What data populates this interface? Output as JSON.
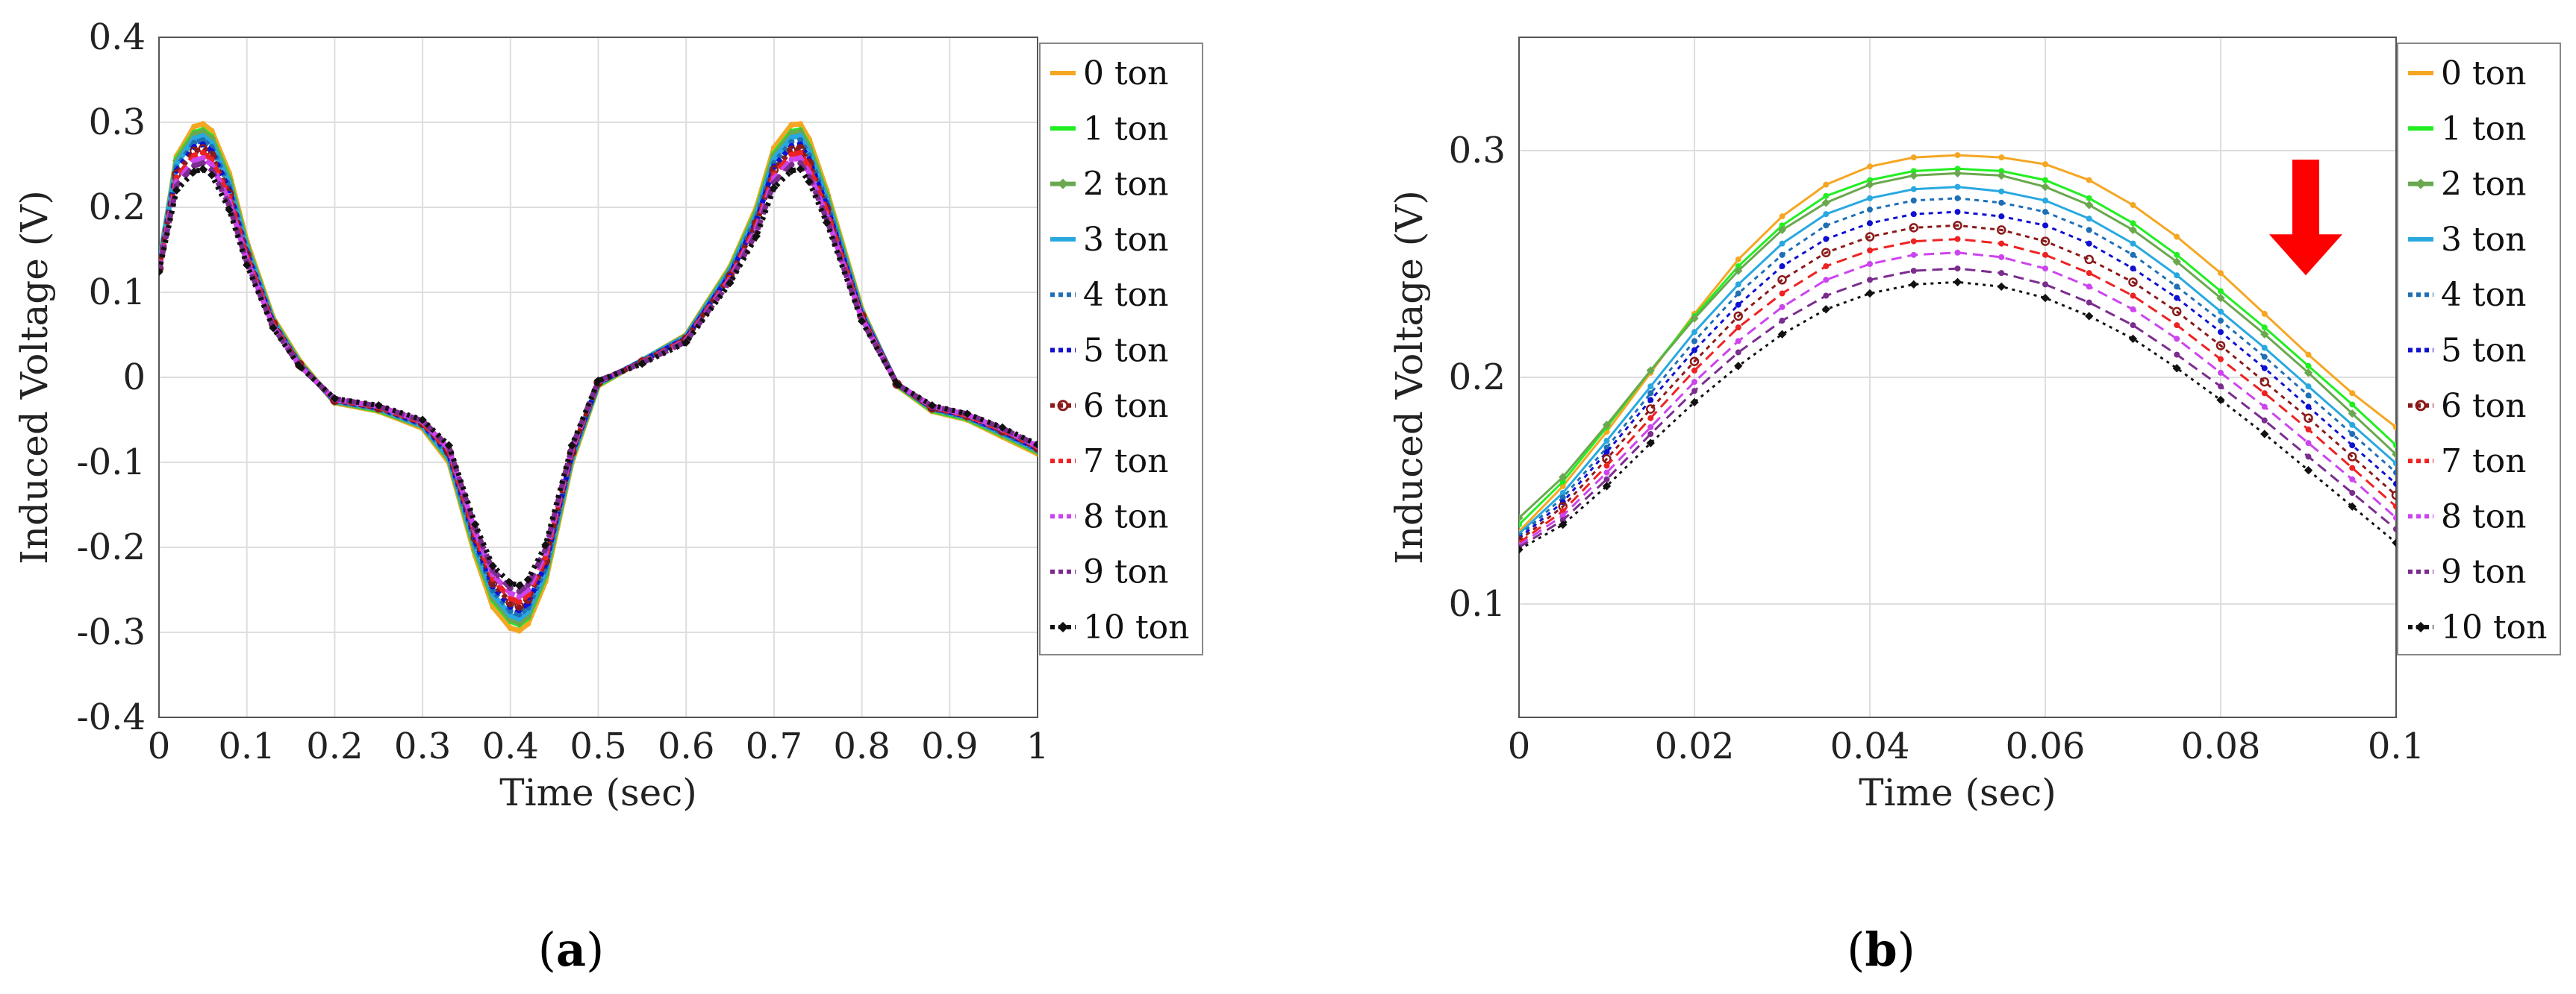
{
  "chart_data": [
    {
      "id": "a",
      "type": "line",
      "caption": "a",
      "xlabel": "Time (sec)",
      "ylabel": "Induced Voltage (V)",
      "xlim": [
        0,
        1
      ],
      "ylim": [
        -0.4,
        0.4
      ],
      "xticks": [
        "0",
        "0.1",
        "0.2",
        "0.3",
        "0.4",
        "0.5",
        "0.6",
        "0.7",
        "0.8",
        "0.9",
        "1"
      ],
      "yticks": [
        "-0.4",
        "-0.3",
        "-0.2",
        "-0.1",
        "0",
        "0.1",
        "0.2",
        "0.3",
        "0.4"
      ],
      "grid": true,
      "legend_position": "outside-right",
      "x": [
        0,
        0.02,
        0.04,
        0.05,
        0.06,
        0.08,
        0.1,
        0.13,
        0.16,
        0.2,
        0.25,
        0.3,
        0.33,
        0.36,
        0.38,
        0.4,
        0.41,
        0.42,
        0.44,
        0.47,
        0.5,
        0.55,
        0.6,
        0.65,
        0.68,
        0.7,
        0.72,
        0.73,
        0.74,
        0.76,
        0.8,
        0.84,
        0.88,
        0.92,
        0.96,
        1.0
      ],
      "series": [
        {
          "name": "0 ton",
          "values": [
            0.13,
            0.26,
            0.295,
            0.298,
            0.29,
            0.24,
            0.16,
            0.07,
            0.02,
            -0.03,
            -0.04,
            -0.06,
            -0.1,
            -0.21,
            -0.27,
            -0.295,
            -0.298,
            -0.29,
            -0.24,
            -0.1,
            -0.01,
            0.02,
            0.05,
            0.13,
            0.2,
            0.27,
            0.297,
            0.298,
            0.28,
            0.22,
            0.08,
            -0.01,
            -0.04,
            -0.05,
            -0.07,
            -0.09
          ]
        },
        {
          "name": "1 ton",
          "values": [
            0.132,
            0.257,
            0.288,
            0.291,
            0.283,
            0.234,
            0.156,
            0.068,
            0.018,
            -0.029,
            -0.039,
            -0.058,
            -0.097,
            -0.205,
            -0.262,
            -0.287,
            -0.291,
            -0.283,
            -0.234,
            -0.097,
            -0.009,
            0.02,
            0.049,
            0.128,
            0.196,
            0.263,
            0.289,
            0.291,
            0.272,
            0.215,
            0.078,
            -0.009,
            -0.039,
            -0.049,
            -0.068,
            -0.088
          ]
        },
        {
          "name": "2 ton",
          "values": [
            0.134,
            0.255,
            0.286,
            0.289,
            0.281,
            0.232,
            0.155,
            0.067,
            0.017,
            -0.029,
            -0.038,
            -0.058,
            -0.096,
            -0.203,
            -0.26,
            -0.285,
            -0.289,
            -0.281,
            -0.232,
            -0.096,
            -0.008,
            0.02,
            0.049,
            0.127,
            0.194,
            0.261,
            0.287,
            0.289,
            0.27,
            0.213,
            0.077,
            -0.008,
            -0.038,
            -0.048,
            -0.067,
            -0.087
          ]
        },
        {
          "name": "3 ton",
          "values": [
            0.131,
            0.251,
            0.281,
            0.284,
            0.276,
            0.228,
            0.152,
            0.066,
            0.016,
            -0.028,
            -0.037,
            -0.057,
            -0.094,
            -0.199,
            -0.255,
            -0.28,
            -0.284,
            -0.276,
            -0.228,
            -0.094,
            -0.007,
            0.02,
            0.048,
            0.125,
            0.191,
            0.257,
            0.282,
            0.284,
            0.265,
            0.209,
            0.076,
            -0.008,
            -0.037,
            -0.047,
            -0.066,
            -0.086
          ]
        },
        {
          "name": "4 ton",
          "values": [
            0.13,
            0.247,
            0.276,
            0.279,
            0.271,
            0.224,
            0.149,
            0.065,
            0.016,
            -0.028,
            -0.037,
            -0.056,
            -0.092,
            -0.196,
            -0.251,
            -0.275,
            -0.279,
            -0.271,
            -0.224,
            -0.092,
            -0.007,
            0.019,
            0.047,
            0.123,
            0.188,
            0.252,
            0.277,
            0.279,
            0.261,
            0.206,
            0.074,
            -0.008,
            -0.037,
            -0.047,
            -0.065,
            -0.085
          ]
        },
        {
          "name": "5 ton",
          "values": [
            0.129,
            0.243,
            0.271,
            0.274,
            0.266,
            0.22,
            0.146,
            0.064,
            0.015,
            -0.027,
            -0.036,
            -0.055,
            -0.09,
            -0.192,
            -0.246,
            -0.27,
            -0.274,
            -0.266,
            -0.22,
            -0.09,
            -0.006,
            0.019,
            0.046,
            0.121,
            0.184,
            0.248,
            0.272,
            0.274,
            0.256,
            0.202,
            0.073,
            -0.008,
            -0.036,
            -0.046,
            -0.064,
            -0.084
          ]
        },
        {
          "name": "6 ton",
          "values": [
            0.128,
            0.239,
            0.266,
            0.269,
            0.261,
            0.216,
            0.144,
            0.063,
            0.015,
            -0.027,
            -0.036,
            -0.054,
            -0.088,
            -0.189,
            -0.242,
            -0.265,
            -0.269,
            -0.261,
            -0.216,
            -0.088,
            -0.006,
            0.018,
            0.045,
            0.119,
            0.181,
            0.244,
            0.267,
            0.269,
            0.252,
            0.198,
            0.072,
            -0.008,
            -0.036,
            -0.045,
            -0.063,
            -0.083
          ]
        },
        {
          "name": "7 ton",
          "values": [
            0.127,
            0.235,
            0.261,
            0.264,
            0.256,
            0.212,
            0.141,
            0.062,
            0.014,
            -0.026,
            -0.035,
            -0.053,
            -0.086,
            -0.185,
            -0.237,
            -0.26,
            -0.264,
            -0.256,
            -0.212,
            -0.086,
            -0.005,
            0.018,
            0.044,
            0.117,
            0.178,
            0.239,
            0.262,
            0.264,
            0.247,
            0.195,
            0.07,
            -0.008,
            -0.035,
            -0.045,
            -0.062,
            -0.082
          ]
        },
        {
          "name": "8 ton",
          "values": [
            0.126,
            0.23,
            0.255,
            0.258,
            0.25,
            0.207,
            0.138,
            0.06,
            0.014,
            -0.026,
            -0.034,
            -0.052,
            -0.084,
            -0.181,
            -0.232,
            -0.254,
            -0.258,
            -0.25,
            -0.207,
            -0.084,
            -0.005,
            0.017,
            0.043,
            0.115,
            0.174,
            0.234,
            0.256,
            0.258,
            0.241,
            0.19,
            0.069,
            -0.008,
            -0.034,
            -0.044,
            -0.061,
            -0.081
          ]
        },
        {
          "name": "9 ton",
          "values": [
            0.125,
            0.225,
            0.249,
            0.252,
            0.244,
            0.202,
            0.135,
            0.059,
            0.013,
            -0.025,
            -0.034,
            -0.051,
            -0.082,
            -0.177,
            -0.227,
            -0.248,
            -0.252,
            -0.244,
            -0.202,
            -0.082,
            -0.004,
            0.017,
            0.042,
            0.113,
            0.17,
            0.229,
            0.25,
            0.252,
            0.236,
            0.186,
            0.067,
            -0.008,
            -0.034,
            -0.043,
            -0.06,
            -0.08
          ]
        },
        {
          "name": "10 ton",
          "values": [
            0.124,
            0.22,
            0.242,
            0.245,
            0.238,
            0.197,
            0.132,
            0.058,
            0.013,
            -0.025,
            -0.033,
            -0.05,
            -0.08,
            -0.173,
            -0.222,
            -0.242,
            -0.245,
            -0.238,
            -0.197,
            -0.08,
            -0.004,
            0.016,
            0.041,
            0.111,
            0.166,
            0.223,
            0.243,
            0.245,
            0.23,
            0.182,
            0.066,
            -0.008,
            -0.033,
            -0.043,
            -0.059,
            -0.079
          ]
        }
      ]
    },
    {
      "id": "b",
      "type": "line",
      "caption": "b",
      "xlabel": "Time (sec)",
      "ylabel": "Induced Voltage (V)",
      "xlim": [
        0,
        0.1
      ],
      "ylim": [
        0.05,
        0.35
      ],
      "xticks": [
        "0",
        "0.02",
        "0.04",
        "0.06",
        "0.08",
        "0.1"
      ],
      "yticks": [
        "0.1",
        "0.2",
        "0.3"
      ],
      "ytick_values": [
        0.1,
        0.2,
        0.3
      ],
      "grid": true,
      "legend_position": "outside-right",
      "annotation": "red downward arrow indicating voltage decreasing with load",
      "x": [
        0,
        0.005,
        0.01,
        0.015,
        0.02,
        0.025,
        0.03,
        0.035,
        0.04,
        0.045,
        0.05,
        0.055,
        0.06,
        0.065,
        0.07,
        0.075,
        0.08,
        0.085,
        0.09,
        0.095,
        0.1
      ],
      "series": [
        {
          "name": "0 ton",
          "values": [
            0.132,
            0.152,
            0.176,
            0.202,
            0.228,
            0.252,
            0.271,
            0.285,
            0.293,
            0.297,
            0.298,
            0.297,
            0.294,
            0.287,
            0.276,
            0.262,
            0.246,
            0.228,
            0.21,
            0.193,
            0.178
          ]
        },
        {
          "name": "1 ton",
          "values": [
            0.135,
            0.154,
            0.178,
            0.203,
            0.227,
            0.249,
            0.267,
            0.28,
            0.287,
            0.291,
            0.292,
            0.291,
            0.287,
            0.279,
            0.268,
            0.254,
            0.238,
            0.222,
            0.205,
            0.188,
            0.17
          ]
        },
        {
          "name": "2 ton",
          "values": [
            0.138,
            0.156,
            0.179,
            0.203,
            0.226,
            0.247,
            0.265,
            0.277,
            0.285,
            0.289,
            0.29,
            0.289,
            0.284,
            0.276,
            0.265,
            0.251,
            0.235,
            0.219,
            0.202,
            0.184,
            0.166
          ]
        },
        {
          "name": "3 ton",
          "values": [
            0.131,
            0.149,
            0.172,
            0.196,
            0.22,
            0.241,
            0.259,
            0.272,
            0.279,
            0.283,
            0.284,
            0.282,
            0.278,
            0.27,
            0.259,
            0.245,
            0.229,
            0.213,
            0.196,
            0.179,
            0.162
          ]
        },
        {
          "name": "4 ton",
          "values": [
            0.13,
            0.147,
            0.169,
            0.193,
            0.216,
            0.237,
            0.254,
            0.267,
            0.274,
            0.278,
            0.279,
            0.277,
            0.273,
            0.265,
            0.254,
            0.24,
            0.225,
            0.209,
            0.192,
            0.175,
            0.158
          ]
        },
        {
          "name": "5 ton",
          "values": [
            0.129,
            0.145,
            0.167,
            0.19,
            0.212,
            0.232,
            0.249,
            0.261,
            0.268,
            0.272,
            0.273,
            0.271,
            0.267,
            0.259,
            0.248,
            0.235,
            0.22,
            0.204,
            0.187,
            0.17,
            0.153
          ]
        },
        {
          "name": "6 ton",
          "values": [
            0.128,
            0.143,
            0.164,
            0.186,
            0.207,
            0.227,
            0.243,
            0.255,
            0.262,
            0.266,
            0.267,
            0.265,
            0.26,
            0.252,
            0.242,
            0.229,
            0.214,
            0.198,
            0.182,
            0.165,
            0.148
          ]
        },
        {
          "name": "7 ton",
          "values": [
            0.127,
            0.141,
            0.161,
            0.182,
            0.203,
            0.222,
            0.237,
            0.249,
            0.256,
            0.26,
            0.261,
            0.259,
            0.254,
            0.246,
            0.236,
            0.223,
            0.208,
            0.193,
            0.177,
            0.16,
            0.143
          ]
        },
        {
          "name": "8 ton",
          "values": [
            0.126,
            0.139,
            0.158,
            0.178,
            0.198,
            0.216,
            0.231,
            0.243,
            0.25,
            0.254,
            0.255,
            0.253,
            0.248,
            0.24,
            0.23,
            0.217,
            0.202,
            0.187,
            0.171,
            0.155,
            0.138
          ]
        },
        {
          "name": "9 ton",
          "values": [
            0.125,
            0.137,
            0.155,
            0.175,
            0.194,
            0.211,
            0.225,
            0.236,
            0.243,
            0.247,
            0.248,
            0.246,
            0.241,
            0.233,
            0.223,
            0.21,
            0.196,
            0.181,
            0.165,
            0.149,
            0.133
          ]
        },
        {
          "name": "10 ton",
          "values": [
            0.124,
            0.135,
            0.152,
            0.171,
            0.189,
            0.205,
            0.219,
            0.23,
            0.237,
            0.241,
            0.242,
            0.24,
            0.235,
            0.227,
            0.217,
            0.204,
            0.19,
            0.175,
            0.159,
            0.143,
            0.127
          ]
        }
      ]
    }
  ],
  "series_styles": [
    {
      "color": "#f5a623",
      "dash": "",
      "marker": "dot"
    },
    {
      "color": "#22ee22",
      "dash": "",
      "marker": "dot"
    },
    {
      "color": "#6aa84f",
      "dash": "",
      "marker": "diamond"
    },
    {
      "color": "#29a8e0",
      "dash": "",
      "marker": "dot"
    },
    {
      "color": "#1f6fb5",
      "dash": "6,6",
      "marker": "dot"
    },
    {
      "color": "#1010d0",
      "dash": "6,6",
      "marker": "dot"
    },
    {
      "color": "#8b1a1a",
      "dash": "6,6",
      "marker": "circle"
    },
    {
      "color": "#ee2222",
      "dash": "14,8",
      "marker": "dot"
    },
    {
      "color": "#cc44ee",
      "dash": "14,8",
      "marker": "dot"
    },
    {
      "color": "#7b2d8e",
      "dash": "14,8",
      "marker": "dot"
    },
    {
      "color": "#111111",
      "dash": "4,6",
      "marker": "diamond"
    }
  ],
  "arrow_color": "#ff0000"
}
